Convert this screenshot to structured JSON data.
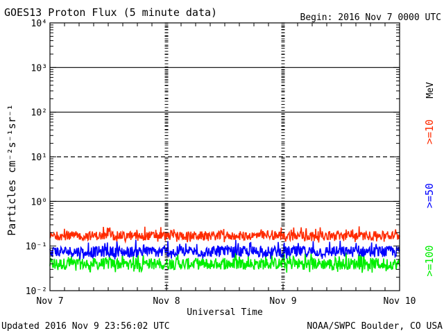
{
  "chart_data": {
    "type": "line",
    "title": "GOES13 Proton Flux (5 minute data)",
    "begin_label": "Begin: 2016 Nov 7 0000 UTC",
    "xlabel": "Universal Time",
    "ylabel": "Particles cm⁻²s⁻¹sr⁻¹",
    "yscale": "log",
    "ylim": [
      0.01,
      10000
    ],
    "y_ticks": [
      {
        "value": 0.01,
        "label": "10⁻²"
      },
      {
        "value": 0.1,
        "label": "10⁻¹"
      },
      {
        "value": 1,
        "label": "10⁰"
      },
      {
        "value": 10,
        "label": "10¹"
      },
      {
        "value": 100,
        "label": "10²"
      },
      {
        "value": 1000,
        "label": "10³"
      },
      {
        "value": 10000,
        "label": "10⁴"
      }
    ],
    "x_ticks": [
      "Nov 7",
      "Nov 8",
      "Nov 9",
      "Nov 10"
    ],
    "xlim": [
      "2016-11-07",
      "2016-11-10"
    ],
    "threshold_lines": [
      1,
      10,
      100,
      1000
    ],
    "energy_unit_label": "MeV",
    "series": [
      {
        "name": ">=10",
        "color": "#ff2a00",
        "typical": 0.17,
        "low": 0.12,
        "high": 0.28
      },
      {
        "name": ">=50",
        "color": "#0000ff",
        "typical": 0.075,
        "low": 0.05,
        "high": 0.14
      },
      {
        "name": ">=100",
        "color": "#00ee00",
        "typical": 0.04,
        "low": 0.025,
        "high": 0.075
      }
    ]
  },
  "footer": {
    "updated": "Updated 2016 Nov  9 23:56:02 UTC",
    "credit": "NOAA/SWPC Boulder, CO USA"
  }
}
